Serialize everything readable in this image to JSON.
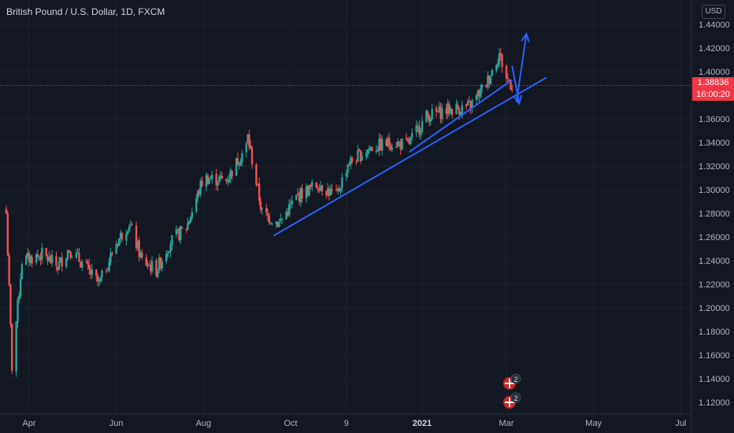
{
  "header": {
    "title": "British Pound / U.S. Dollar, 1D, FXCM",
    "currency": "USD"
  },
  "price_tag": {
    "price": "1.38836",
    "countdown": "16:00:20"
  },
  "event_badges": [
    "2",
    "2"
  ],
  "colors": {
    "background": "#131722",
    "up": "#26a69a",
    "down": "#ef5350",
    "drawing": "#2962ff",
    "price_line": "#f23645",
    "grid": "#1e222d"
  },
  "chart_data": {
    "type": "candlestick",
    "y_ticks": [
      "1.44000",
      "1.42000",
      "1.40000",
      "1.36000",
      "1.34000",
      "1.32000",
      "1.30000",
      "1.28000",
      "1.26000",
      "1.24000",
      "1.22000",
      "1.20000",
      "1.18000",
      "1.16000",
      "1.14000",
      "1.12000"
    ],
    "y_tick_values": [
      1.44,
      1.42,
      1.4,
      1.36,
      1.34,
      1.32,
      1.3,
      1.28,
      1.26,
      1.24,
      1.22,
      1.2,
      1.18,
      1.16,
      1.14,
      1.12
    ],
    "x_ticks": [
      "Apr",
      "Jun",
      "Aug",
      "Oct",
      "9",
      "2021",
      "Mar",
      "May",
      "Jul"
    ],
    "x_tick_dates": [
      "2020-04-01",
      "2020-06-01",
      "2020-08-01",
      "2020-10-01",
      "2020-11-09",
      "2021-01-01",
      "2021-03-01",
      "2021-05-01",
      "2021-07-01"
    ],
    "bold_ticks": [
      "2021"
    ],
    "ylim": [
      1.115,
      1.45
    ],
    "current_price": 1.38836,
    "close_path": [
      [
        "2020-03-16",
        1.28
      ],
      [
        "2020-03-20",
        1.15
      ],
      [
        "2020-03-27",
        1.24
      ],
      [
        "2020-04-10",
        1.245
      ],
      [
        "2020-04-21",
        1.235
      ],
      [
        "2020-04-29",
        1.25
      ],
      [
        "2020-05-08",
        1.238
      ],
      [
        "2020-05-20",
        1.22
      ],
      [
        "2020-06-01",
        1.255
      ],
      [
        "2020-06-10",
        1.272
      ],
      [
        "2020-06-19",
        1.24
      ],
      [
        "2020-06-29",
        1.232
      ],
      [
        "2020-07-09",
        1.256
      ],
      [
        "2020-07-20",
        1.268
      ],
      [
        "2020-08-01",
        1.31
      ],
      [
        "2020-08-17",
        1.308
      ],
      [
        "2020-08-31",
        1.337
      ],
      [
        "2020-09-01",
        1.345
      ],
      [
        "2020-09-11",
        1.28
      ],
      [
        "2020-09-23",
        1.272
      ],
      [
        "2020-10-06",
        1.295
      ],
      [
        "2020-10-21",
        1.305
      ],
      [
        "2020-11-02",
        1.294
      ],
      [
        "2020-11-10",
        1.322
      ],
      [
        "2020-11-25",
        1.335
      ],
      [
        "2020-12-10",
        1.34
      ],
      [
        "2020-12-22",
        1.338
      ],
      [
        "2021-01-04",
        1.362
      ],
      [
        "2021-01-20",
        1.368
      ],
      [
        "2021-02-03",
        1.37
      ],
      [
        "2021-02-15",
        1.39
      ],
      [
        "2021-02-24",
        1.415
      ],
      [
        "2021-03-01",
        1.395
      ],
      [
        "2021-03-05",
        1.38836
      ]
    ],
    "trendlines": [
      {
        "from": [
          "2020-09-19",
          1.261
        ],
        "to": [
          "2021-03-29",
          1.395
        ]
      },
      {
        "from": [
          "2020-12-23",
          1.332
        ],
        "to": [
          "2021-03-05",
          1.393
        ]
      }
    ],
    "arrows": [
      {
        "from": [
          "2021-03-08",
          1.374
        ],
        "to": [
          "2021-03-15",
          1.432
        ]
      },
      {
        "from": [
          "2021-03-05",
          1.405
        ],
        "to": [
          "2021-03-10",
          1.373
        ]
      }
    ]
  }
}
